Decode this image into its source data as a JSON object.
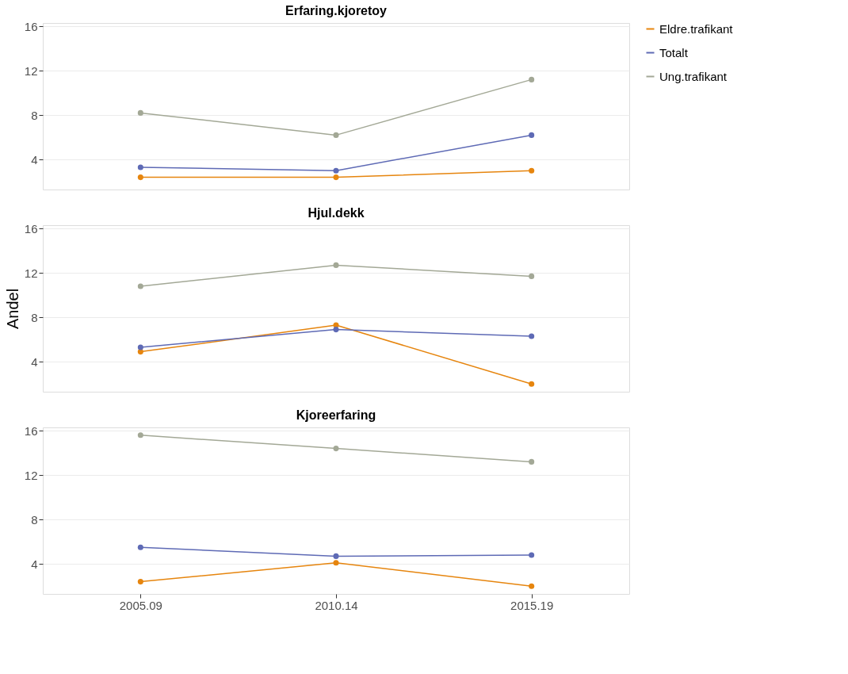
{
  "chart_data": [
    {
      "type": "line",
      "title": "Erfaring.kjoretoy",
      "categories": [
        "2005.09",
        "2010.14",
        "2015.19"
      ],
      "ylim": [
        1.3,
        16.3
      ],
      "yticks": [
        4,
        8,
        12,
        16
      ],
      "grid": "y",
      "marker": "circle",
      "tick_labels": "y",
      "legend": "right",
      "series": [
        {
          "name": "Eldre.trafikant",
          "color": "#e6850e",
          "values": [
            2.4,
            2.4,
            3.0
          ]
        },
        {
          "name": "Totalt",
          "color": "#5e6ab5",
          "values": [
            3.3,
            3.0,
            6.2
          ]
        },
        {
          "name": "Ung.trafikant",
          "color": "#a3a896",
          "values": [
            8.2,
            6.2,
            11.2
          ]
        }
      ]
    },
    {
      "type": "line",
      "title": "Hjul.dekk",
      "ylabel": "Andel",
      "categories": [
        "2005.09",
        "2010.14",
        "2015.19"
      ],
      "ylim": [
        1.3,
        16.3
      ],
      "yticks": [
        4,
        8,
        12,
        16
      ],
      "grid": "y",
      "marker": "circle",
      "tick_labels": "y",
      "legend": "right",
      "series": [
        {
          "name": "Eldre.trafikant",
          "color": "#e6850e",
          "values": [
            4.9,
            7.3,
            2.0
          ]
        },
        {
          "name": "Totalt",
          "color": "#5e6ab5",
          "values": [
            5.3,
            6.9,
            6.3
          ]
        },
        {
          "name": "Ung.trafikant",
          "color": "#a3a896",
          "values": [
            10.8,
            12.7,
            11.7
          ]
        }
      ]
    },
    {
      "type": "line",
      "title": "Kjoreerfaring",
      "categories": [
        "2005.09",
        "2010.14",
        "2015.19"
      ],
      "ylim": [
        1.3,
        16.3
      ],
      "yticks": [
        4,
        8,
        12,
        16
      ],
      "grid": "y",
      "marker": "circle",
      "legend": "right",
      "series": [
        {
          "name": "Eldre.trafikant",
          "color": "#e6850e",
          "values": [
            2.4,
            4.1,
            2.0
          ]
        },
        {
          "name": "Totalt",
          "color": "#5e6ab5",
          "values": [
            5.5,
            4.7,
            4.8
          ]
        },
        {
          "name": "Ung.trafikant",
          "color": "#a3a896",
          "values": [
            15.6,
            14.4,
            13.2
          ]
        }
      ]
    }
  ]
}
